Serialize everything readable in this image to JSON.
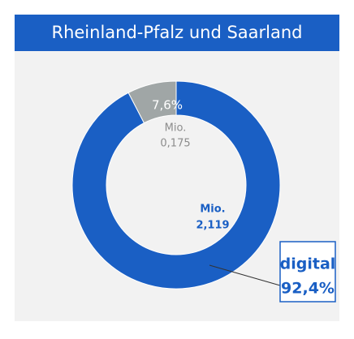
{
  "chart_data": {
    "type": "pie",
    "title": "Rheinland-Pfalz und Saarland",
    "categories": [
      "digital",
      null
    ],
    "values": [
      92.4,
      7.6
    ],
    "value_labels": [
      "92,4%",
      "7,6%"
    ],
    "amount_unit": "Mio.",
    "amounts": [
      2.119,
      0.175
    ],
    "amount_labels": [
      "2,119",
      "0,175"
    ],
    "colors": [
      "#1a5fc4",
      "#a0a6a6"
    ],
    "donut": true
  }
}
